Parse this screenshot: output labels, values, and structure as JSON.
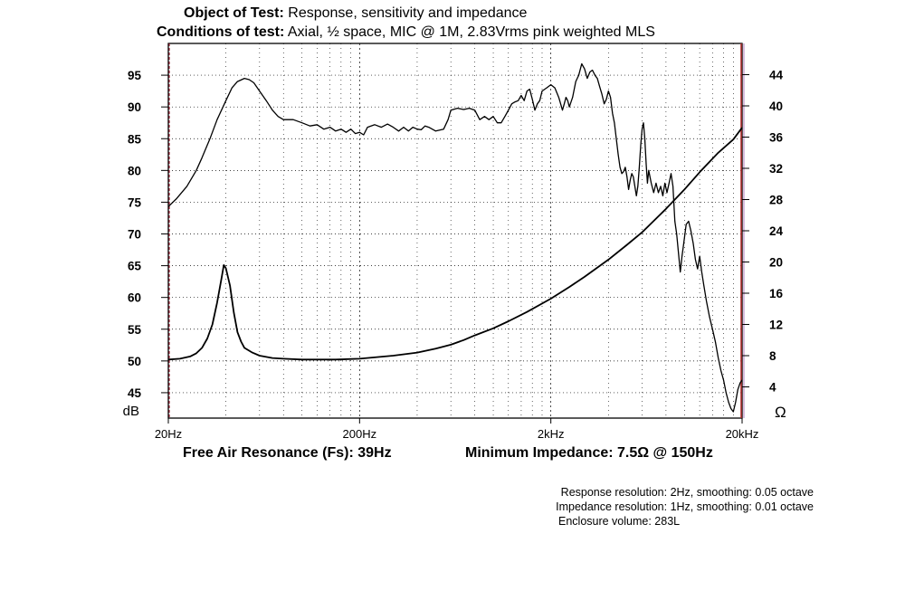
{
  "header": {
    "object_label": "Object of Test:",
    "object_value": "Response, sensitivity and impedance",
    "conditions_label": "Conditions of test:",
    "conditions_value": "Axial, ½ space, MIC @ 1M, 2.83Vrms pink weighted MLS"
  },
  "footer": {
    "fs_label": "Free Air Resonance (Fs): 39Hz",
    "min_imp_label": "Minimum Impedance: 7.5Ω @ 150Hz",
    "note1": "Response resolution: 2Hz, smoothing: 0.05 octave",
    "note2": "Impedance resolution: 1Hz, smoothing: 0.01 octave",
    "note3": "Enclosure volume: 283L"
  },
  "chart_data": {
    "type": "line",
    "x_scale": "log",
    "xlim": [
      20,
      20000
    ],
    "x_tick_labels": [
      "20Hz",
      "200Hz",
      "2kHz",
      "20kHz"
    ],
    "x_tick_values": [
      20,
      200,
      2000,
      20000
    ],
    "left_axis": {
      "unit": "dB",
      "ylim": [
        41,
        100
      ],
      "ticks": [
        95,
        90,
        85,
        80,
        75,
        70,
        65,
        60,
        55,
        50,
        45
      ]
    },
    "right_axis": {
      "unit": "Ω",
      "ylim": [
        0,
        48
      ],
      "ticks": [
        44,
        40,
        36,
        32,
        28,
        24,
        20,
        16,
        12,
        8,
        4
      ]
    },
    "grid": true,
    "colors": {
      "line": "#000000",
      "grid": "#000000",
      "marker_left": "#8b1a2b",
      "marker_right": "#b03030",
      "marker_right_light": "#b080c0"
    },
    "series": [
      {
        "axis": "left",
        "points": [
          [
            20,
            74.3
          ],
          [
            22,
            75.5
          ],
          [
            25,
            77.5
          ],
          [
            28,
            80
          ],
          [
            30,
            82
          ],
          [
            33,
            85
          ],
          [
            36,
            88
          ],
          [
            40,
            91
          ],
          [
            43,
            93
          ],
          [
            46,
            94
          ],
          [
            50,
            94.5
          ],
          [
            53,
            94.3
          ],
          [
            56,
            93.8
          ],
          [
            60,
            92.5
          ],
          [
            65,
            91
          ],
          [
            70,
            89.5
          ],
          [
            75,
            88.5
          ],
          [
            80,
            88
          ],
          [
            90,
            88
          ],
          [
            100,
            87.5
          ],
          [
            110,
            87
          ],
          [
            120,
            87.2
          ],
          [
            130,
            86.5
          ],
          [
            140,
            86.8
          ],
          [
            150,
            86.2
          ],
          [
            160,
            86.5
          ],
          [
            170,
            86
          ],
          [
            180,
            86.5
          ],
          [
            190,
            85.8
          ],
          [
            200,
            86
          ],
          [
            210,
            85.6
          ],
          [
            220,
            86.8
          ],
          [
            240,
            87.2
          ],
          [
            260,
            86.8
          ],
          [
            280,
            87.3
          ],
          [
            300,
            86.8
          ],
          [
            320,
            86.2
          ],
          [
            340,
            86.8
          ],
          [
            360,
            86.2
          ],
          [
            380,
            86.8
          ],
          [
            400,
            86.5
          ],
          [
            420,
            86.4
          ],
          [
            440,
            87
          ],
          [
            460,
            86.8
          ],
          [
            500,
            86.2
          ],
          [
            550,
            86.5
          ],
          [
            580,
            88
          ],
          [
            600,
            89.5
          ],
          [
            650,
            89.8
          ],
          [
            700,
            89.6
          ],
          [
            750,
            89.8
          ],
          [
            800,
            89.5
          ],
          [
            850,
            88
          ],
          [
            900,
            88.5
          ],
          [
            950,
            88
          ],
          [
            1000,
            88.5
          ],
          [
            1050,
            87.5
          ],
          [
            1100,
            87.5
          ],
          [
            1150,
            88.5
          ],
          [
            1200,
            89.5
          ],
          [
            1250,
            90.5
          ],
          [
            1300,
            90.8
          ],
          [
            1350,
            91
          ],
          [
            1400,
            91.8
          ],
          [
            1450,
            91
          ],
          [
            1500,
            92.5
          ],
          [
            1550,
            92.8
          ],
          [
            1600,
            91.2
          ],
          [
            1650,
            89.5
          ],
          [
            1700,
            90.5
          ],
          [
            1750,
            91
          ],
          [
            1800,
            92.5
          ],
          [
            1900,
            93
          ],
          [
            2000,
            93.5
          ],
          [
            2100,
            93
          ],
          [
            2200,
            91.5
          ],
          [
            2300,
            89.5
          ],
          [
            2350,
            90.5
          ],
          [
            2400,
            91.5
          ],
          [
            2450,
            91
          ],
          [
            2500,
            90
          ],
          [
            2600,
            91.5
          ],
          [
            2700,
            94
          ],
          [
            2800,
            95
          ],
          [
            2900,
            96.8
          ],
          [
            3000,
            96
          ],
          [
            3100,
            94.5
          ],
          [
            3200,
            95.5
          ],
          [
            3300,
            95.8
          ],
          [
            3400,
            95
          ],
          [
            3500,
            94.5
          ],
          [
            3600,
            93.2
          ],
          [
            3700,
            92
          ],
          [
            3800,
            90.5
          ],
          [
            3900,
            91.2
          ],
          [
            4000,
            92.5
          ],
          [
            4100,
            91.5
          ],
          [
            4200,
            89
          ],
          [
            4300,
            87.5
          ],
          [
            4400,
            85
          ],
          [
            4500,
            82.5
          ],
          [
            4600,
            80.5
          ],
          [
            4700,
            79.5
          ],
          [
            4800,
            79.8
          ],
          [
            4900,
            80.5
          ],
          [
            5000,
            79
          ],
          [
            5100,
            77
          ],
          [
            5200,
            78.5
          ],
          [
            5300,
            79.5
          ],
          [
            5400,
            79
          ],
          [
            5500,
            77.5
          ],
          [
            5600,
            76
          ],
          [
            5700,
            77.5
          ],
          [
            5800,
            80.5
          ],
          [
            5900,
            84
          ],
          [
            6000,
            86.5
          ],
          [
            6100,
            87.5
          ],
          [
            6200,
            85
          ],
          [
            6300,
            81
          ],
          [
            6400,
            78
          ],
          [
            6500,
            80
          ],
          [
            6700,
            78
          ],
          [
            6900,
            76.5
          ],
          [
            7100,
            78
          ],
          [
            7300,
            76.5
          ],
          [
            7500,
            77.5
          ],
          [
            7700,
            76
          ],
          [
            7900,
            78
          ],
          [
            8100,
            76.5
          ],
          [
            8300,
            78
          ],
          [
            8500,
            79.5
          ],
          [
            8700,
            77.5
          ],
          [
            8900,
            72
          ],
          [
            9100,
            70
          ],
          [
            9300,
            67
          ],
          [
            9500,
            64
          ],
          [
            9700,
            66.5
          ],
          [
            9900,
            68.5
          ],
          [
            10200,
            71.5
          ],
          [
            10500,
            72
          ],
          [
            10800,
            70.5
          ],
          [
            11100,
            68.5
          ],
          [
            11400,
            66
          ],
          [
            11700,
            64.5
          ],
          [
            12000,
            66.5
          ],
          [
            12300,
            64
          ],
          [
            12600,
            62
          ],
          [
            13000,
            59.5
          ],
          [
            13500,
            57
          ],
          [
            14000,
            55
          ],
          [
            14500,
            53
          ],
          [
            15000,
            50.5
          ],
          [
            15500,
            48.5
          ],
          [
            16000,
            47
          ],
          [
            16500,
            45
          ],
          [
            17000,
            43.5
          ],
          [
            17500,
            42.5
          ],
          [
            18000,
            42
          ],
          [
            18500,
            43.5
          ],
          [
            19000,
            45.5
          ],
          [
            19500,
            46.5
          ],
          [
            20000,
            47
          ]
        ]
      },
      {
        "axis": "right",
        "points": [
          [
            20,
            7.5
          ],
          [
            23,
            7.6
          ],
          [
            26,
            7.9
          ],
          [
            28,
            8.3
          ],
          [
            30,
            9
          ],
          [
            32,
            10.2
          ],
          [
            34,
            12
          ],
          [
            36,
            14.8
          ],
          [
            38,
            18
          ],
          [
            39,
            19.6
          ],
          [
            40,
            19.2
          ],
          [
            42,
            17
          ],
          [
            44,
            13.5
          ],
          [
            46,
            11
          ],
          [
            48,
            9.8
          ],
          [
            50,
            9
          ],
          [
            55,
            8.4
          ],
          [
            60,
            8
          ],
          [
            70,
            7.7
          ],
          [
            80,
            7.6
          ],
          [
            100,
            7.5
          ],
          [
            120,
            7.5
          ],
          [
            150,
            7.5
          ],
          [
            200,
            7.6
          ],
          [
            300,
            8
          ],
          [
            400,
            8.4
          ],
          [
            500,
            8.9
          ],
          [
            600,
            9.4
          ],
          [
            700,
            10
          ],
          [
            800,
            10.6
          ],
          [
            1000,
            11.5
          ],
          [
            1200,
            12.4
          ],
          [
            1500,
            13.6
          ],
          [
            2000,
            15.3
          ],
          [
            2500,
            16.8
          ],
          [
            3000,
            18.1
          ],
          [
            4000,
            20.3
          ],
          [
            5000,
            22.2
          ],
          [
            6000,
            23.8
          ],
          [
            7000,
            25.4
          ],
          [
            8000,
            26.8
          ],
          [
            10000,
            29.3
          ],
          [
            12000,
            31.5
          ],
          [
            15000,
            34
          ],
          [
            18000,
            35.7
          ],
          [
            20000,
            37.2
          ]
        ]
      }
    ]
  }
}
